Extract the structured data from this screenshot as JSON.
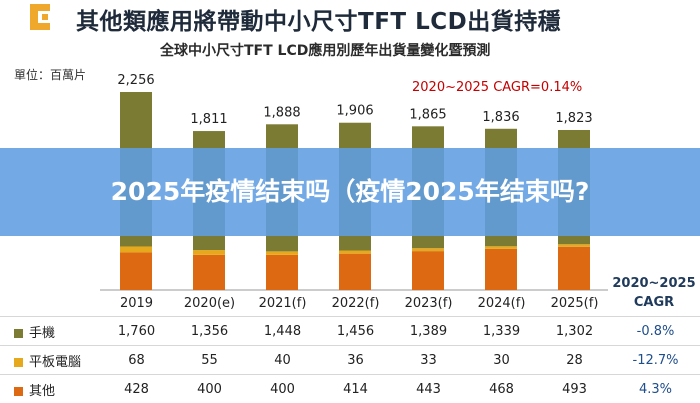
{
  "titles": {
    "main": "其他類應用將帶動中小尺寸TFT LCD出貨持穩",
    "subtitle": "全球中小尺寸TFT LCD應用別歷年出貨量變化暨預測",
    "unit": "單位：百萬片",
    "cagr_note": "2020~2025 CAGR=0.14%",
    "cagr_header_line1": "2020~2025",
    "cagr_header_line2": "CAGR"
  },
  "banner": {
    "text": "2025年疫情结束吗（疫情2025年结束吗?"
  },
  "colors": {
    "phone": "#7b7b34",
    "tablet": "#e6a91e",
    "other": "#dd6a13",
    "total_bar": "#2e6fa8",
    "logo": "#f0a82c",
    "cagr_red": "#c40000"
  },
  "chart_data": {
    "type": "bar",
    "stacked": true,
    "title": "全球中小尺寸TFT LCD應用別歷年出貨量變化暨預測",
    "ylabel": "單位：百萬片",
    "categories": [
      "2019",
      "2020(e)",
      "2021(f)",
      "2022(f)",
      "2023(f)",
      "2024(f)",
      "2025(f)"
    ],
    "totals": [
      2256,
      1811,
      1888,
      1906,
      1865,
      1836,
      1823
    ],
    "total_labels": [
      "2,256",
      "1,811",
      "1,888",
      "1,906",
      "1,865",
      "1,836",
      "1,823"
    ],
    "series": [
      {
        "name": "手機",
        "key": "phone",
        "values": [
          1760,
          1356,
          1448,
          1456,
          1389,
          1339,
          1302
        ],
        "labels": [
          "1,760",
          "1,356",
          "1,448",
          "1,456",
          "1,389",
          "1,339",
          "1,302"
        ],
        "cagr": "-0.8%"
      },
      {
        "name": "平板電腦",
        "key": "tablet",
        "values": [
          68,
          55,
          40,
          36,
          33,
          30,
          28
        ],
        "labels": [
          "68",
          "55",
          "40",
          "36",
          "33",
          "30",
          "28"
        ],
        "cagr": "-12.7%"
      },
      {
        "name": "其他",
        "key": "other",
        "values": [
          428,
          400,
          400,
          414,
          443,
          468,
          493
        ],
        "labels": [
          "428",
          "400",
          "400",
          "414",
          "443",
          "468",
          "493"
        ],
        "cagr": "4.3%"
      }
    ],
    "ylim": [
      0,
      2300
    ],
    "overall_cagr": "2020~2025 CAGR=0.14%"
  }
}
